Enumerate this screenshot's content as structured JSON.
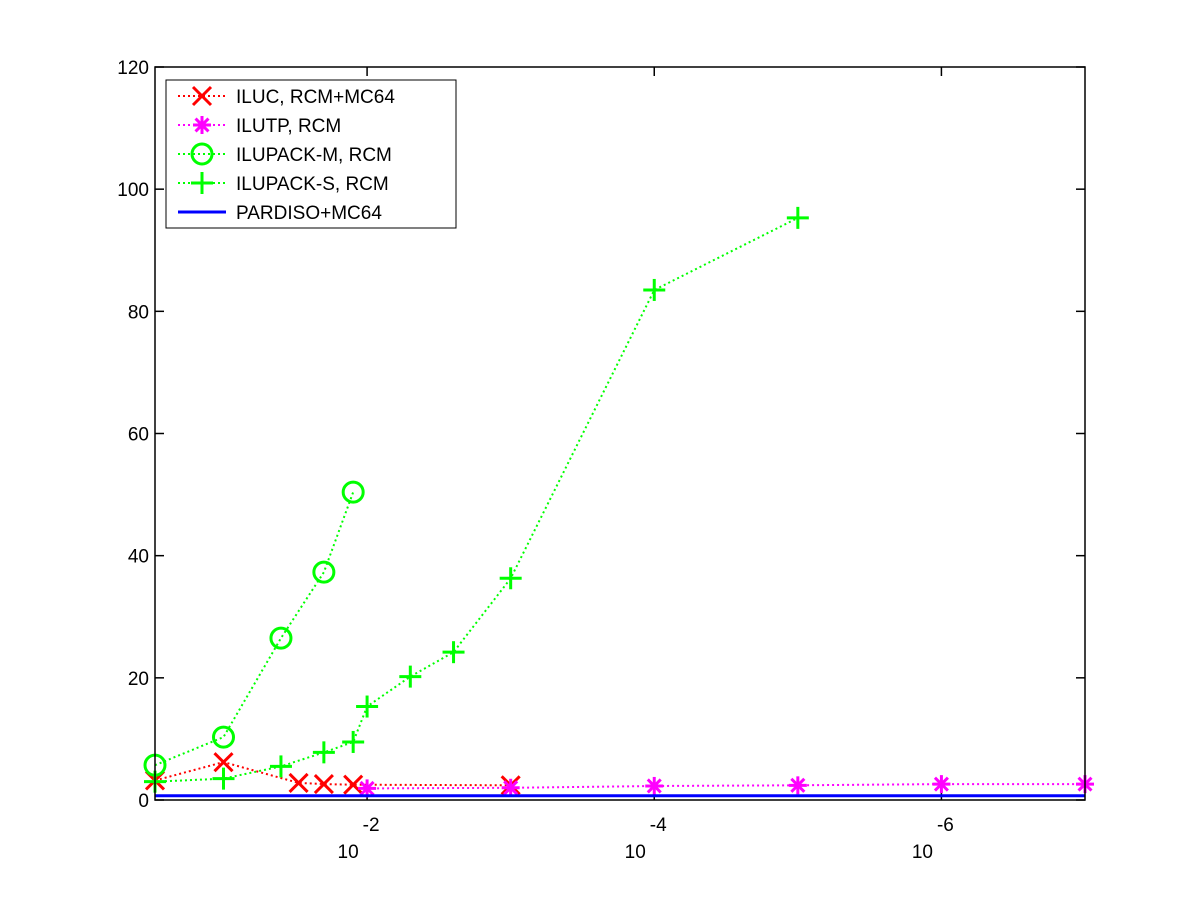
{
  "chart_data": {
    "type": "line",
    "x_scale": "log",
    "x_direction": "decreasing",
    "xlim": [
      0.3,
      1e-07
    ],
    "ylim": [
      0,
      120
    ],
    "yticks": [
      0,
      20,
      40,
      60,
      80,
      100,
      120
    ],
    "xticks": [
      {
        "value": 0.01,
        "base": "10",
        "exponent": "-2"
      },
      {
        "value": 0.0001,
        "base": "10",
        "exponent": "-4"
      },
      {
        "value": 1e-06,
        "base": "10",
        "exponent": "-6"
      }
    ],
    "grid": false,
    "legend_position": "top-left",
    "series": [
      {
        "name": "ILUC, RCM+MC64",
        "color": "#ff0000",
        "marker": "x",
        "line_style": "dotted",
        "points": [
          [
            0.3,
            3.2
          ],
          [
            0.1,
            6.2
          ],
          [
            0.03,
            2.8
          ],
          [
            0.02,
            2.6
          ],
          [
            0.0125,
            2.5
          ],
          [
            0.001,
            2.4
          ]
        ]
      },
      {
        "name": "ILUTP, RCM",
        "color": "#ff00ff",
        "marker": "asterisk",
        "line_style": "dotted",
        "points": [
          [
            0.01,
            1.9
          ],
          [
            0.001,
            2.0
          ],
          [
            0.0001,
            2.3
          ],
          [
            1e-05,
            2.4
          ],
          [
            1e-06,
            2.6
          ],
          [
            1e-07,
            2.6
          ]
        ]
      },
      {
        "name": "ILUPACK-M, RCM",
        "color": "#00ff00",
        "marker": "circle",
        "line_style": "dotted",
        "points": [
          [
            0.3,
            5.7
          ],
          [
            0.1,
            10.3
          ],
          [
            0.0398,
            26.5
          ],
          [
            0.02,
            37.3
          ],
          [
            0.0125,
            50.4
          ]
        ]
      },
      {
        "name": "ILUPACK-S, RCM",
        "color": "#00ff00",
        "marker": "plus",
        "line_style": "dotted",
        "points": [
          [
            0.3,
            3.0
          ],
          [
            0.1,
            3.5
          ],
          [
            0.0398,
            5.5
          ],
          [
            0.02,
            7.8
          ],
          [
            0.0125,
            9.5
          ],
          [
            0.01,
            15.3
          ],
          [
            0.005,
            20.2
          ],
          [
            0.0025,
            24.2
          ],
          [
            0.001,
            36.3
          ],
          [
            0.0001,
            83.5
          ],
          [
            1e-05,
            95.3
          ]
        ]
      },
      {
        "name": "PARDISO+MC64",
        "color": "#0000ff",
        "marker": "none",
        "line_style": "solid",
        "points": [
          [
            0.3,
            0.7
          ],
          [
            1e-07,
            0.7
          ]
        ]
      }
    ]
  }
}
